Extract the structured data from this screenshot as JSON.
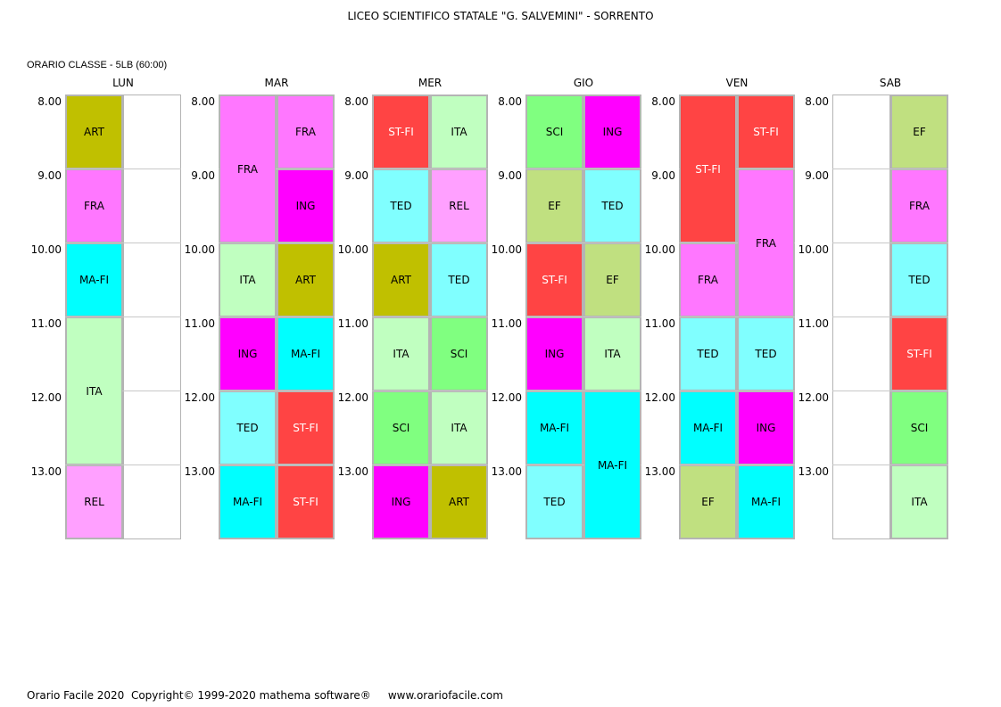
{
  "header": {
    "school": "LICEO SCIENTIFICO STATALE \"G. SALVEMINI\" - SORRENTO",
    "class_label": "ORARIO CLASSE  -  5LB  (60:00)"
  },
  "hours": [
    "8.00",
    "9.00",
    "10.00",
    "11.00",
    "12.00",
    "13.00"
  ],
  "subject_colors": {
    "ART": "#c0c000",
    "FRA": "#ff77ff",
    "MA-FI": "#00ffff",
    "ITA": "#c0ffc0",
    "REL": "#ffa0ff",
    "ING": "#ff00ff",
    "TED": "#80ffff",
    "ST-FI": "#ff4444",
    "SCI": "#80ff80",
    "EF": "#c0e080"
  },
  "days": [
    {
      "name": "LUN",
      "lessons": [
        {
          "subject": "ART",
          "col": 0,
          "start": 0,
          "span": 1
        },
        {
          "subject": "FRA",
          "col": 0,
          "start": 1,
          "span": 1
        },
        {
          "subject": "MA-FI",
          "col": 0,
          "start": 2,
          "span": 1
        },
        {
          "subject": "ITA",
          "col": 0,
          "start": 3,
          "span": 2
        },
        {
          "subject": "REL",
          "col": 0,
          "start": 5,
          "span": 1
        }
      ]
    },
    {
      "name": "MAR",
      "lessons": [
        {
          "subject": "FRA",
          "col": 0,
          "start": 0,
          "span": 2
        },
        {
          "subject": "FRA",
          "col": 1,
          "start": 0,
          "span": 1
        },
        {
          "subject": "ING",
          "col": 1,
          "start": 1,
          "span": 1
        },
        {
          "subject": "ITA",
          "col": 0,
          "start": 2,
          "span": 1
        },
        {
          "subject": "ART",
          "col": 1,
          "start": 2,
          "span": 1
        },
        {
          "subject": "ING",
          "col": 0,
          "start": 3,
          "span": 1
        },
        {
          "subject": "MA-FI",
          "col": 1,
          "start": 3,
          "span": 1
        },
        {
          "subject": "TED",
          "col": 0,
          "start": 4,
          "span": 1
        },
        {
          "subject": "ST-FI",
          "col": 1,
          "start": 4,
          "span": 1
        },
        {
          "subject": "MA-FI",
          "col": 0,
          "start": 5,
          "span": 1
        },
        {
          "subject": "ST-FI",
          "col": 1,
          "start": 5,
          "span": 1
        }
      ]
    },
    {
      "name": "MER",
      "lessons": [
        {
          "subject": "ST-FI",
          "col": 0,
          "start": 0,
          "span": 1
        },
        {
          "subject": "ITA",
          "col": 1,
          "start": 0,
          "span": 1
        },
        {
          "subject": "TED",
          "col": 0,
          "start": 1,
          "span": 1
        },
        {
          "subject": "REL",
          "col": 1,
          "start": 1,
          "span": 1
        },
        {
          "subject": "ART",
          "col": 0,
          "start": 2,
          "span": 1
        },
        {
          "subject": "TED",
          "col": 1,
          "start": 2,
          "span": 1
        },
        {
          "subject": "ITA",
          "col": 0,
          "start": 3,
          "span": 1
        },
        {
          "subject": "SCI",
          "col": 1,
          "start": 3,
          "span": 1
        },
        {
          "subject": "SCI",
          "col": 0,
          "start": 4,
          "span": 1
        },
        {
          "subject": "ITA",
          "col": 1,
          "start": 4,
          "span": 1
        },
        {
          "subject": "ING",
          "col": 0,
          "start": 5,
          "span": 1
        },
        {
          "subject": "ART",
          "col": 1,
          "start": 5,
          "span": 1
        }
      ]
    },
    {
      "name": "GIO",
      "lessons": [
        {
          "subject": "SCI",
          "col": 0,
          "start": 0,
          "span": 1
        },
        {
          "subject": "ING",
          "col": 1,
          "start": 0,
          "span": 1
        },
        {
          "subject": "EF",
          "col": 0,
          "start": 1,
          "span": 1
        },
        {
          "subject": "TED",
          "col": 1,
          "start": 1,
          "span": 1
        },
        {
          "subject": "ST-FI",
          "col": 0,
          "start": 2,
          "span": 1
        },
        {
          "subject": "EF",
          "col": 1,
          "start": 2,
          "span": 1
        },
        {
          "subject": "ING",
          "col": 0,
          "start": 3,
          "span": 1
        },
        {
          "subject": "ITA",
          "col": 1,
          "start": 3,
          "span": 1
        },
        {
          "subject": "MA-FI",
          "col": 0,
          "start": 4,
          "span": 1
        },
        {
          "subject": "MA-FI",
          "col": 1,
          "start": 4,
          "span": 2
        },
        {
          "subject": "TED",
          "col": 0,
          "start": 5,
          "span": 1
        }
      ]
    },
    {
      "name": "VEN",
      "lessons": [
        {
          "subject": "ST-FI",
          "col": 0,
          "start": 0,
          "span": 2
        },
        {
          "subject": "ST-FI",
          "col": 1,
          "start": 0,
          "span": 1
        },
        {
          "subject": "FRA",
          "col": 1,
          "start": 1,
          "span": 2
        },
        {
          "subject": "FRA",
          "col": 0,
          "start": 2,
          "span": 1
        },
        {
          "subject": "TED",
          "col": 0,
          "start": 3,
          "span": 1
        },
        {
          "subject": "TED",
          "col": 1,
          "start": 3,
          "span": 1
        },
        {
          "subject": "MA-FI",
          "col": 0,
          "start": 4,
          "span": 1
        },
        {
          "subject": "ING",
          "col": 1,
          "start": 4,
          "span": 1
        },
        {
          "subject": "EF",
          "col": 0,
          "start": 5,
          "span": 1
        },
        {
          "subject": "MA-FI",
          "col": 1,
          "start": 5,
          "span": 1
        }
      ]
    },
    {
      "name": "SAB",
      "lessons": [
        {
          "subject": "EF",
          "col": 1,
          "start": 0,
          "span": 1
        },
        {
          "subject": "FRA",
          "col": 1,
          "start": 1,
          "span": 1
        },
        {
          "subject": "TED",
          "col": 1,
          "start": 2,
          "span": 1
        },
        {
          "subject": "ST-FI",
          "col": 1,
          "start": 3,
          "span": 1
        },
        {
          "subject": "SCI",
          "col": 1,
          "start": 4,
          "span": 1
        },
        {
          "subject": "ITA",
          "col": 1,
          "start": 5,
          "span": 1
        }
      ]
    }
  ],
  "footer": {
    "text": "Orario Facile 2020  Copyright© 1999-2020 mathema software®     www.orariofacile.com"
  }
}
